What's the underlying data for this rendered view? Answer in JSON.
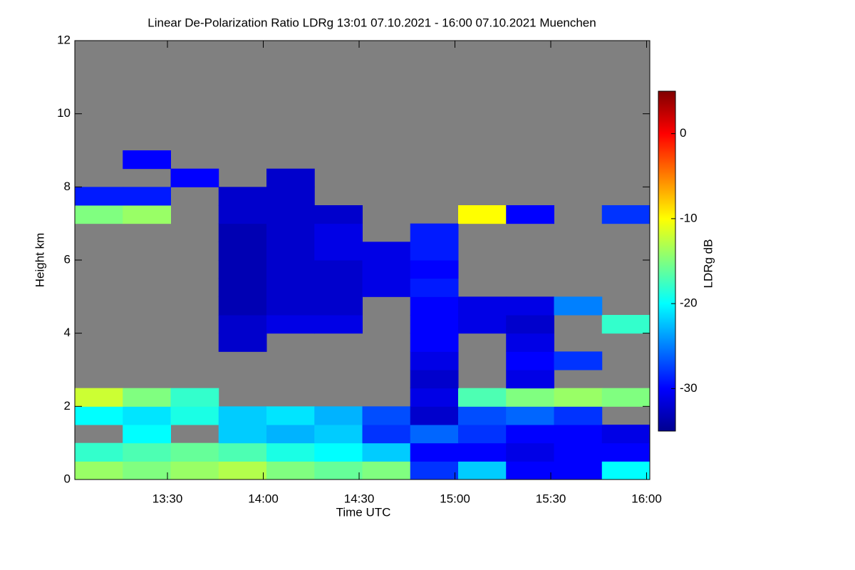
{
  "chart_data": {
    "type": "heatmap",
    "title": "Linear De-Polarization Ratio LDRg   13:01 07.10.2021 - 16:00 07.10.2021 Muenchen",
    "x_label": "Time UTC",
    "y_label": "Height km",
    "colorbar_label": "LDRg dB",
    "colormap": "jet",
    "background": "#808080",
    "xlim": [
      781,
      961
    ],
    "xticks": [
      {
        "value": 810,
        "label": "13:30"
      },
      {
        "value": 840,
        "label": "14:00"
      },
      {
        "value": 870,
        "label": "14:30"
      },
      {
        "value": 900,
        "label": "15:00"
      },
      {
        "value": 930,
        "label": "15:30"
      },
      {
        "value": 960,
        "label": "16:00"
      }
    ],
    "ylim": [
      0,
      12
    ],
    "yticks": [
      0,
      2,
      4,
      6,
      8,
      10,
      12
    ],
    "clim": [
      -35,
      5
    ],
    "cticks": [
      0,
      -10,
      -20,
      -30
    ],
    "x_bins": [
      781,
      796,
      811,
      826,
      841,
      856,
      871,
      886,
      901,
      916,
      931,
      946,
      961
    ],
    "y_bins": [
      0,
      0.5,
      1,
      1.5,
      2,
      2.5,
      3,
      3.5,
      4,
      4.5,
      5,
      5.5,
      6,
      6.5,
      7,
      7.5,
      8,
      8.5,
      9
    ],
    "z": [
      [
        -14,
        -15,
        -14,
        -13,
        -15,
        -16,
        -15,
        -28,
        -22,
        -30,
        -30,
        -20
      ],
      [
        -18,
        -17,
        -16,
        -17,
        -19,
        -20,
        -22,
        -30,
        -30,
        -31,
        -30,
        -30
      ],
      [
        null,
        -20,
        null,
        -22,
        -23,
        -22,
        -28,
        -26,
        -28,
        -30,
        -30,
        -31
      ],
      [
        -20,
        -21,
        -19,
        -22,
        -21,
        -23,
        -27,
        -32,
        -27,
        -26,
        -28,
        null
      ],
      [
        -12,
        -15,
        -18,
        null,
        null,
        null,
        null,
        -31,
        -17,
        -15,
        -14,
        -15
      ],
      [
        null,
        null,
        null,
        null,
        null,
        null,
        null,
        -32,
        null,
        -31,
        null,
        null
      ],
      [
        null,
        null,
        null,
        null,
        null,
        null,
        null,
        -31,
        null,
        -30,
        -28,
        null
      ],
      [
        null,
        null,
        null,
        -32,
        null,
        null,
        null,
        -30,
        null,
        -31,
        null,
        null
      ],
      [
        null,
        null,
        null,
        -32,
        -31,
        -31,
        null,
        -30,
        -31,
        -32,
        null,
        -18
      ],
      [
        null,
        null,
        null,
        -33,
        -32,
        -32,
        null,
        -30,
        -31,
        -31,
        -25,
        null
      ],
      [
        null,
        null,
        null,
        -33,
        -32,
        -32,
        -31,
        -29,
        null,
        null,
        null,
        null
      ],
      [
        null,
        null,
        null,
        -33,
        -32,
        -32,
        -31,
        -30,
        null,
        null,
        null,
        null
      ],
      [
        null,
        null,
        null,
        -33,
        -32,
        -31,
        -31,
        -29,
        null,
        null,
        null,
        null
      ],
      [
        null,
        null,
        null,
        -33,
        -32,
        -31,
        null,
        -29,
        null,
        null,
        null,
        null
      ],
      [
        -15,
        -14,
        null,
        -32,
        -32,
        -32,
        null,
        null,
        -10,
        -30,
        null,
        -28
      ],
      [
        -29,
        -29,
        null,
        -32,
        -32,
        null,
        null,
        null,
        null,
        null,
        null,
        null
      ],
      [
        null,
        null,
        -30,
        null,
        -32,
        null,
        null,
        null,
        null,
        null,
        null,
        null
      ],
      [
        null,
        -30,
        null,
        null,
        null,
        null,
        null,
        null,
        null,
        null,
        null,
        null
      ]
    ]
  }
}
